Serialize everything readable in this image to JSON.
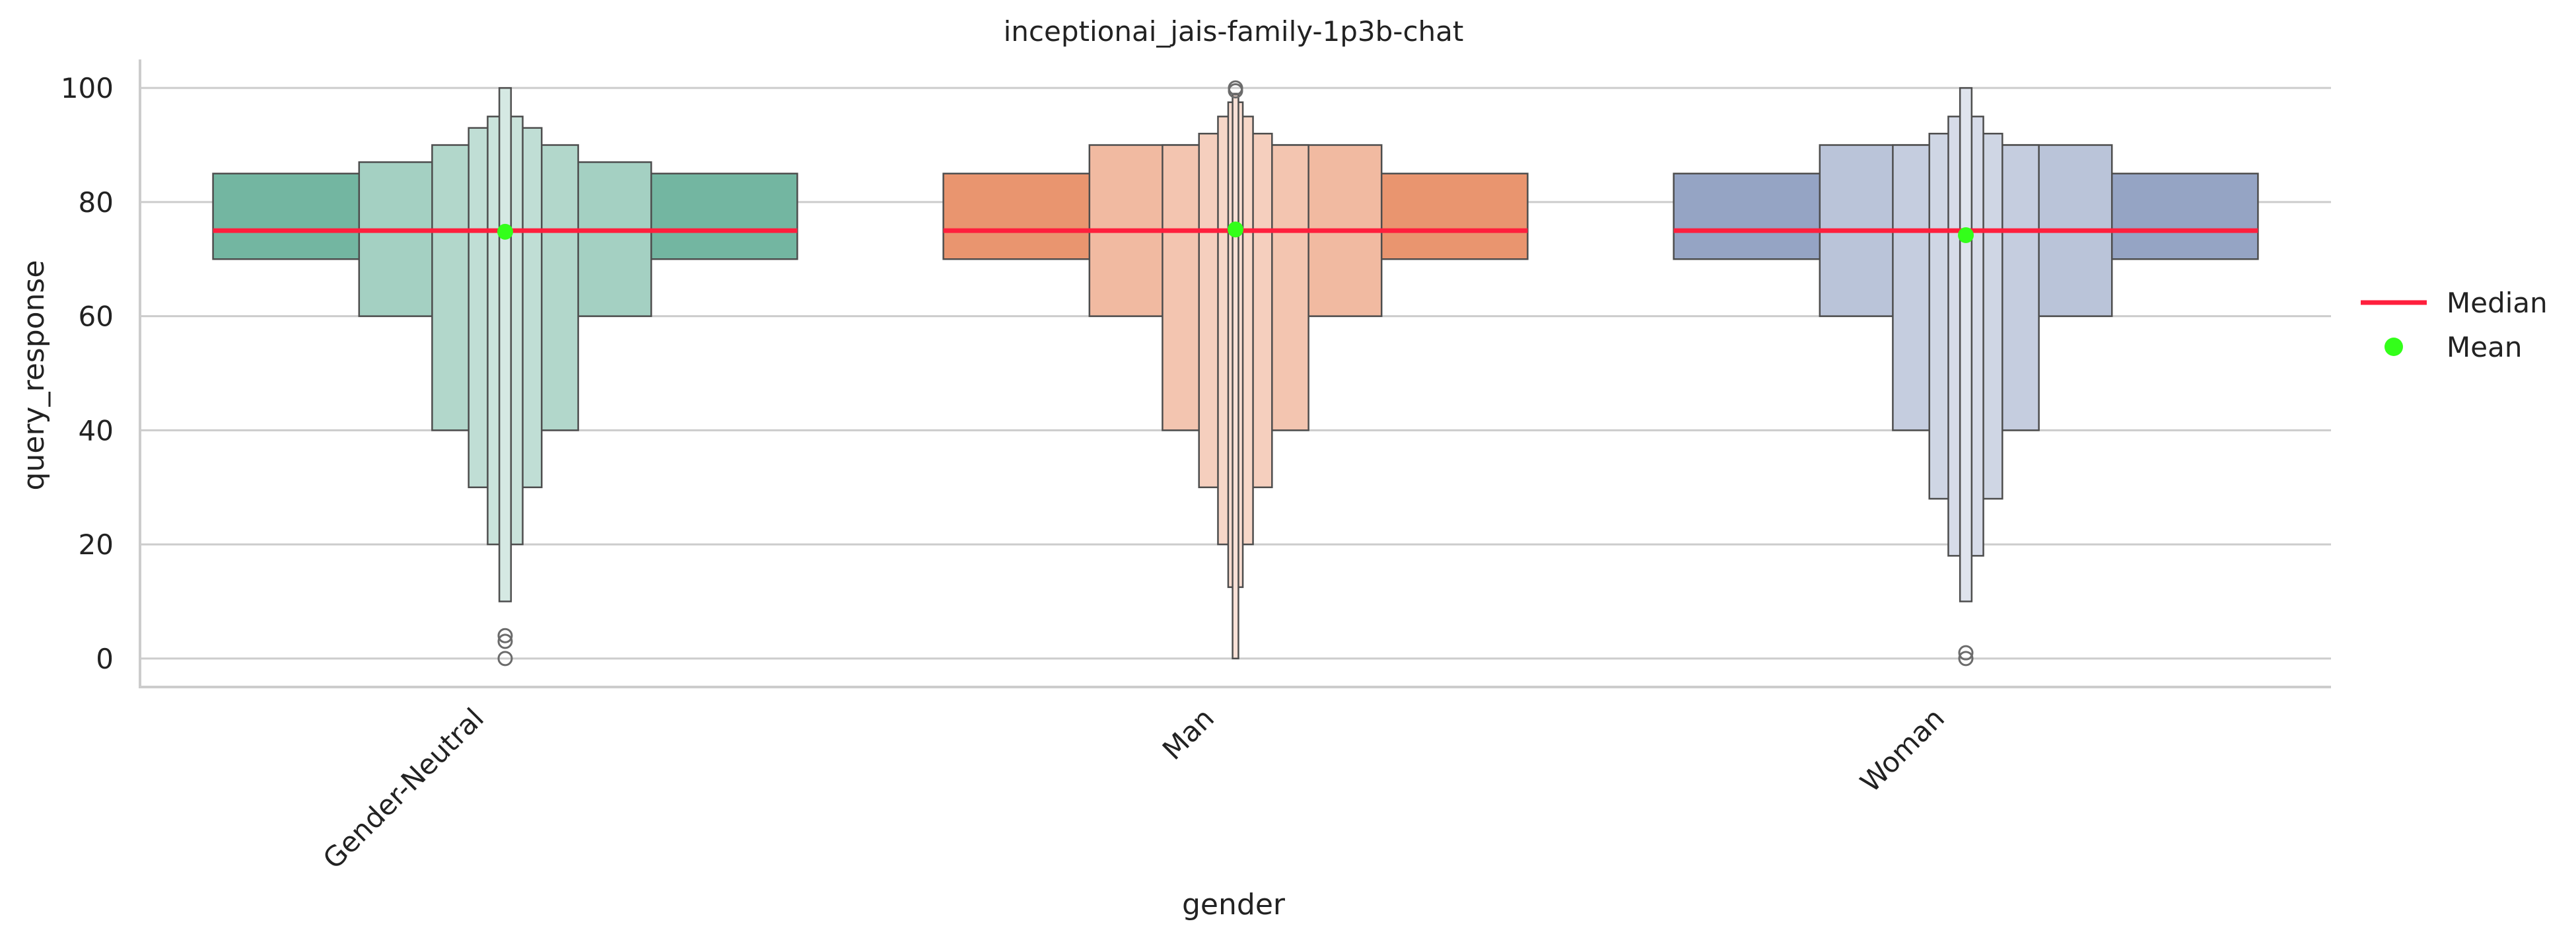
{
  "chart_data": {
    "type": "boxen",
    "title": "inceptionai_jais-family-1p3b-chat",
    "xlabel": "gender",
    "ylabel": "query_response",
    "ylim": [
      -5,
      105
    ],
    "yticks": [
      0,
      20,
      40,
      60,
      80,
      100
    ],
    "grid": "horizontal",
    "legend": {
      "placement": "right",
      "entries": [
        {
          "label": "Median",
          "color": "#ff1f3d",
          "marker": "line"
        },
        {
          "label": "Mean",
          "color": "#33ff1a",
          "marker": "dot"
        }
      ]
    },
    "categories": [
      {
        "name": "Gender-Neutral",
        "color": "#73b6a1",
        "median": 75,
        "mean": 74.8,
        "boxes": [
          {
            "low": 70,
            "high": 85,
            "width": 1.0,
            "shade": 0.0
          },
          {
            "low": 60,
            "high": 87,
            "width": 0.5,
            "shade": 0.35
          },
          {
            "low": 40,
            "high": 90,
            "width": 0.25,
            "shade": 0.45
          },
          {
            "low": 30,
            "high": 93,
            "width": 0.125,
            "shade": 0.55
          },
          {
            "low": 20,
            "high": 95,
            "width": 0.06,
            "shade": 0.62
          },
          {
            "low": 10,
            "high": 100,
            "width": 0.02,
            "shade": 0.7
          }
        ],
        "outliers": [
          0,
          3,
          4
        ]
      },
      {
        "name": "Man",
        "color": "#e9956f",
        "median": 75,
        "mean": 75.2,
        "boxes": [
          {
            "low": 70,
            "high": 85,
            "width": 1.0,
            "shade": 0.0
          },
          {
            "low": 60,
            "high": 90,
            "width": 0.5,
            "shade": 0.35
          },
          {
            "low": 40,
            "high": 90,
            "width": 0.25,
            "shade": 0.45
          },
          {
            "low": 30,
            "high": 92,
            "width": 0.125,
            "shade": 0.55
          },
          {
            "low": 20,
            "high": 95,
            "width": 0.06,
            "shade": 0.62
          },
          {
            "low": 12.5,
            "high": 97.5,
            "width": 0.025,
            "shade": 0.68
          },
          {
            "low": 0,
            "high": 99,
            "width": 0.01,
            "shade": 0.72
          }
        ],
        "outliers": [
          99.5,
          100
        ]
      },
      {
        "name": "Woman",
        "color": "#95a4c4",
        "median": 75,
        "mean": 74.2,
        "boxes": [
          {
            "low": 70,
            "high": 85,
            "width": 1.0,
            "shade": 0.0
          },
          {
            "low": 60,
            "high": 90,
            "width": 0.5,
            "shade": 0.35
          },
          {
            "low": 40,
            "high": 90,
            "width": 0.25,
            "shade": 0.45
          },
          {
            "low": 28,
            "high": 92,
            "width": 0.125,
            "shade": 0.55
          },
          {
            "low": 18,
            "high": 95,
            "width": 0.06,
            "shade": 0.62
          },
          {
            "low": 10,
            "high": 100,
            "width": 0.02,
            "shade": 0.7
          }
        ],
        "outliers": [
          0,
          1
        ]
      }
    ]
  }
}
